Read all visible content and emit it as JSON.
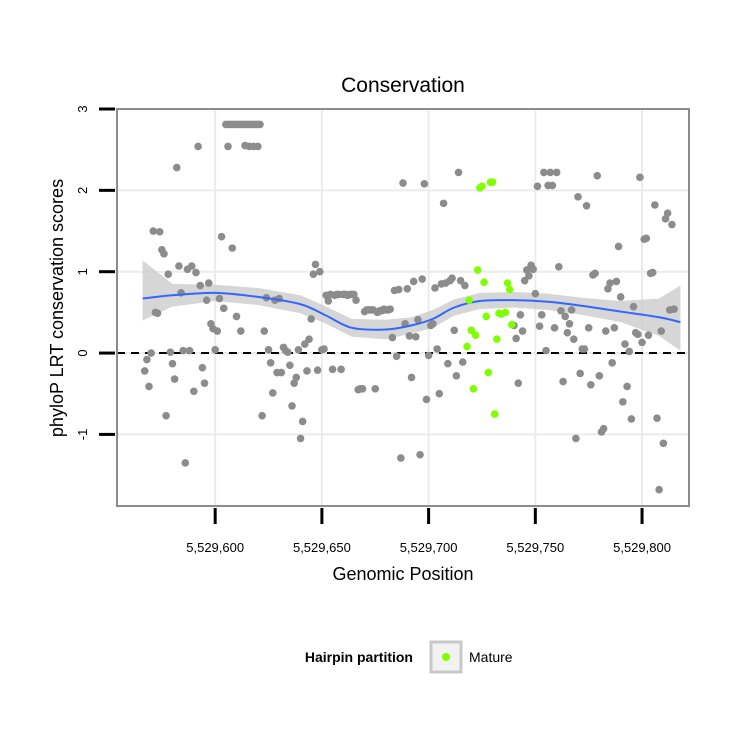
{
  "chart_data": {
    "type": "scatter",
    "title": "Conservation",
    "xlabel": "Genomic Position",
    "ylabel": "phyloP LRT conservation scores",
    "xlim": [
      5529554,
      5529822
    ],
    "ylim": [
      -1.88,
      3.0
    ],
    "x_ticks": [
      5529600,
      5529650,
      5529700,
      5529750,
      5529800
    ],
    "x_tick_labels": [
      "5,529,600",
      "5,529,650",
      "5,529,700",
      "5,529,750",
      "5,529,800"
    ],
    "y_ticks": [
      -1,
      0,
      1,
      2,
      3
    ],
    "y_tick_labels": [
      "-1",
      "0",
      "1",
      "2",
      "3"
    ],
    "reference_line_y": 0,
    "grid": true,
    "legend": {
      "title": "Hairpin partition",
      "placement": "bottom",
      "entries": [
        {
          "label": "Mature",
          "color": "#7fff00"
        }
      ]
    },
    "colors": {
      "points": "#8c8c8c",
      "mature": "#7fff00",
      "smooth_line": "#3366ff",
      "ribbon": "#c8c8c8",
      "panel_border": "#8c8c8c",
      "grid": "#ebebeb"
    },
    "series": [
      {
        "name": "Mature",
        "points": [
          [
            5529719,
            0.65
          ],
          [
            5529720,
            0.28
          ],
          [
            5529721,
            -0.44
          ],
          [
            5529722,
            0.22
          ],
          [
            5529723,
            1.02
          ],
          [
            5529724,
            2.03
          ],
          [
            5529725,
            2.05
          ],
          [
            5529726,
            0.87
          ],
          [
            5529727,
            0.45
          ],
          [
            5529728,
            -0.24
          ],
          [
            5529729,
            2.1
          ],
          [
            5529730,
            2.1
          ],
          [
            5529731,
            -0.75
          ],
          [
            5529732,
            0.17
          ],
          [
            5529733,
            0.49
          ],
          [
            5529734,
            0.48
          ],
          [
            5529736,
            0.5
          ],
          [
            5529737,
            0.86
          ],
          [
            5529738,
            0.78
          ],
          [
            5529739,
            0.35
          ],
          [
            5529718,
            0.08
          ]
        ]
      },
      {
        "name": "",
        "points": [
          [
            5529567,
            -0.22
          ],
          [
            5529568,
            -0.08
          ],
          [
            5529569,
            -0.41
          ],
          [
            5529570,
            0.0
          ],
          [
            5529571,
            1.5
          ],
          [
            5529572,
            0.5
          ],
          [
            5529573,
            0.49
          ],
          [
            5529574,
            1.49
          ],
          [
            5529575,
            1.27
          ],
          [
            5529576,
            1.22
          ],
          [
            5529577,
            -0.77
          ],
          [
            5529578,
            0.97
          ],
          [
            5529579,
            0.01
          ],
          [
            5529580,
            -0.13
          ],
          [
            5529581,
            -0.32
          ],
          [
            5529582,
            2.28
          ],
          [
            5529583,
            1.07
          ],
          [
            5529584,
            0.74
          ],
          [
            5529585,
            0.03
          ],
          [
            5529586,
            -1.35
          ],
          [
            5529587,
            1.03
          ],
          [
            5529588,
            0.03
          ],
          [
            5529589,
            1.07
          ],
          [
            5529590,
            -0.47
          ],
          [
            5529591,
            0.99
          ],
          [
            5529592,
            2.54
          ],
          [
            5529593,
            0.83
          ],
          [
            5529594,
            -0.18
          ],
          [
            5529595,
            -0.37
          ],
          [
            5529596,
            0.65
          ],
          [
            5529597,
            0.86
          ],
          [
            5529598,
            0.36
          ],
          [
            5529599,
            0.3
          ],
          [
            5529600,
            0.04
          ],
          [
            5529601,
            0.27
          ],
          [
            5529602,
            0.67
          ],
          [
            5529603,
            1.43
          ],
          [
            5529604,
            0.55
          ],
          [
            5529605,
            2.81
          ],
          [
            5529606,
            2.81
          ],
          [
            5529607,
            2.81
          ],
          [
            5529608,
            2.81
          ],
          [
            5529609,
            2.81
          ],
          [
            5529610,
            2.81
          ],
          [
            5529611,
            2.81
          ],
          [
            5529612,
            2.81
          ],
          [
            5529613,
            2.81
          ],
          [
            5529614,
            2.81
          ],
          [
            5529615,
            2.81
          ],
          [
            5529616,
            2.81
          ],
          [
            5529617,
            2.81
          ],
          [
            5529618,
            2.81
          ],
          [
            5529619,
            2.81
          ],
          [
            5529620,
            2.81
          ],
          [
            5529621,
            2.81
          ],
          [
            5529606,
            2.54
          ],
          [
            5529608,
            1.29
          ],
          [
            5529610,
            0.45
          ],
          [
            5529612,
            0.27
          ],
          [
            5529614,
            2.55
          ],
          [
            5529616,
            2.54
          ],
          [
            5529618,
            2.54
          ],
          [
            5529620,
            2.54
          ],
          [
            5529622,
            -0.77
          ],
          [
            5529623,
            0.27
          ],
          [
            5529624,
            0.68
          ],
          [
            5529625,
            0.04
          ],
          [
            5529626,
            -0.12
          ],
          [
            5529627,
            -0.49
          ],
          [
            5529628,
            0.65
          ],
          [
            5529629,
            -0.24
          ],
          [
            5529630,
            0.67
          ],
          [
            5529631,
            -0.24
          ],
          [
            5529632,
            0.07
          ],
          [
            5529633,
            0.03
          ],
          [
            5529634,
            0.01
          ],
          [
            5529635,
            -0.15
          ],
          [
            5529636,
            -0.65
          ],
          [
            5529637,
            -0.37
          ],
          [
            5529638,
            -0.3
          ],
          [
            5529639,
            0.04
          ],
          [
            5529640,
            -1.05
          ],
          [
            5529641,
            -0.84
          ],
          [
            5529642,
            0.11
          ],
          [
            5529643,
            -0.22
          ],
          [
            5529644,
            0.17
          ],
          [
            5529645,
            0.42
          ],
          [
            5529646,
            0.97
          ],
          [
            5529647,
            1.09
          ],
          [
            5529648,
            -0.21
          ],
          [
            5529649,
            1.0
          ],
          [
            5529650,
            0.04
          ],
          [
            5529651,
            0.05
          ],
          [
            5529652,
            0.71
          ],
          [
            5529653,
            0.64
          ],
          [
            5529654,
            0.72
          ],
          [
            5529655,
            -0.2
          ],
          [
            5529656,
            0.71
          ],
          [
            5529657,
            0.72
          ],
          [
            5529658,
            0.72
          ],
          [
            5529659,
            -0.2
          ],
          [
            5529660,
            0.72
          ],
          [
            5529661,
            0.72
          ],
          [
            5529662,
            0.71
          ],
          [
            5529663,
            0.72
          ],
          [
            5529664,
            0.72
          ],
          [
            5529665,
            0.72
          ],
          [
            5529666,
            0.65
          ],
          [
            5529667,
            -0.45
          ],
          [
            5529668,
            -0.44
          ],
          [
            5529669,
            -0.44
          ],
          [
            5529670,
            0.51
          ],
          [
            5529671,
            0.53
          ],
          [
            5529672,
            0.53
          ],
          [
            5529673,
            0.53
          ],
          [
            5529674,
            0.53
          ],
          [
            5529675,
            -0.44
          ],
          [
            5529676,
            0.5
          ],
          [
            5529677,
            0.52
          ],
          [
            5529678,
            0.52
          ],
          [
            5529679,
            0.54
          ],
          [
            5529680,
            0.53
          ],
          [
            5529681,
            0.53
          ],
          [
            5529682,
            0.54
          ],
          [
            5529683,
            0.19
          ],
          [
            5529684,
            0.77
          ],
          [
            5529685,
            -0.04
          ],
          [
            5529686,
            0.78
          ],
          [
            5529687,
            -1.29
          ],
          [
            5529688,
            2.09
          ],
          [
            5529689,
            0.36
          ],
          [
            5529690,
            0.79
          ],
          [
            5529691,
            0.21
          ],
          [
            5529692,
            -0.3
          ],
          [
            5529693,
            0.88
          ],
          [
            5529694,
            0.2
          ],
          [
            5529695,
            0.41
          ],
          [
            5529696,
            -1.25
          ],
          [
            5529697,
            0.91
          ],
          [
            5529698,
            2.08
          ],
          [
            5529699,
            -0.57
          ],
          [
            5529700,
            -0.03
          ],
          [
            5529701,
            0.34
          ],
          [
            5529702,
            0.36
          ],
          [
            5529703,
            0.8
          ],
          [
            5529704,
            0.05
          ],
          [
            5529705,
            -0.5
          ],
          [
            5529706,
            0.85
          ],
          [
            5529707,
            1.84
          ],
          [
            5529708,
            0.86
          ],
          [
            5529709,
            -0.13
          ],
          [
            5529710,
            0.89
          ],
          [
            5529711,
            0.92
          ],
          [
            5529712,
            0.28
          ],
          [
            5529713,
            -0.28
          ],
          [
            5529714,
            2.22
          ],
          [
            5529715,
            0.89
          ],
          [
            5529716,
            -0.11
          ],
          [
            5529717,
            0.83
          ],
          [
            5529740,
            0.34
          ],
          [
            5529741,
            0.18
          ],
          [
            5529742,
            -0.37
          ],
          [
            5529743,
            0.47
          ],
          [
            5529744,
            0.27
          ],
          [
            5529745,
            0.89
          ],
          [
            5529746,
            1.02
          ],
          [
            5529747,
            0.95
          ],
          [
            5529748,
            1.08
          ],
          [
            5529749,
            1.03
          ],
          [
            5529750,
            0.73
          ],
          [
            5529751,
            2.05
          ],
          [
            5529752,
            0.33
          ],
          [
            5529753,
            0.47
          ],
          [
            5529754,
            2.22
          ],
          [
            5529755,
            0.03
          ],
          [
            5529756,
            2.06
          ],
          [
            5529757,
            2.22
          ],
          [
            5529758,
            2.06
          ],
          [
            5529759,
            0.31
          ],
          [
            5529760,
            2.22
          ],
          [
            5529761,
            1.06
          ],
          [
            5529762,
            0.52
          ],
          [
            5529763,
            -0.35
          ],
          [
            5529764,
            0.45
          ],
          [
            5529765,
            0.25
          ],
          [
            5529766,
            0.36
          ],
          [
            5529767,
            0.53
          ],
          [
            5529768,
            0.17
          ],
          [
            5529769,
            -1.05
          ],
          [
            5529770,
            1.92
          ],
          [
            5529771,
            -0.25
          ],
          [
            5529772,
            0.05
          ],
          [
            5529773,
            0.05
          ],
          [
            5529774,
            1.81
          ],
          [
            5529775,
            0.31
          ],
          [
            5529776,
            -0.39
          ],
          [
            5529777,
            0.96
          ],
          [
            5529778,
            0.98
          ],
          [
            5529779,
            2.18
          ],
          [
            5529780,
            -0.28
          ],
          [
            5529781,
            -0.97
          ],
          [
            5529782,
            -0.93
          ],
          [
            5529783,
            0.27
          ],
          [
            5529784,
            0.79
          ],
          [
            5529785,
            0.86
          ],
          [
            5529786,
            -0.12
          ],
          [
            5529787,
            0.31
          ],
          [
            5529788,
            0.88
          ],
          [
            5529789,
            1.31
          ],
          [
            5529790,
            0.69
          ],
          [
            5529791,
            -0.6
          ],
          [
            5529792,
            0.11
          ],
          [
            5529793,
            -0.41
          ],
          [
            5529794,
            0.02
          ],
          [
            5529795,
            -0.81
          ],
          [
            5529796,
            0.57
          ],
          [
            5529797,
            0.25
          ],
          [
            5529798,
            0.23
          ],
          [
            5529799,
            2.16
          ],
          [
            5529800,
            0.13
          ],
          [
            5529801,
            1.4
          ],
          [
            5529802,
            1.41
          ],
          [
            5529803,
            0.22
          ],
          [
            5529804,
            0.98
          ],
          [
            5529805,
            0.99
          ],
          [
            5529806,
            1.82
          ],
          [
            5529807,
            -0.8
          ],
          [
            5529808,
            -1.68
          ],
          [
            5529809,
            0.27
          ],
          [
            5529810,
            -1.11
          ],
          [
            5529811,
            1.65
          ],
          [
            5529812,
            1.72
          ],
          [
            5529813,
            0.53
          ],
          [
            5529814,
            1.58
          ],
          [
            5529815,
            0.54
          ]
        ]
      }
    ],
    "smooth_fit": {
      "x": [
        5529566,
        5529580,
        5529600,
        5529620,
        5529640,
        5529652,
        5529664,
        5529680,
        5529692,
        5529702,
        5529712,
        5529724,
        5529740,
        5529756,
        5529772,
        5529790,
        5529808,
        5529818
      ],
      "y": [
        0.67,
        0.71,
        0.74,
        0.69,
        0.6,
        0.46,
        0.31,
        0.29,
        0.34,
        0.42,
        0.56,
        0.64,
        0.65,
        0.63,
        0.58,
        0.51,
        0.44,
        0.38
      ],
      "lower": [
        0.4,
        0.57,
        0.64,
        0.59,
        0.49,
        0.36,
        0.2,
        0.17,
        0.24,
        0.31,
        0.46,
        0.54,
        0.56,
        0.53,
        0.47,
        0.38,
        0.21,
        0.03
      ],
      "upper": [
        1.14,
        0.85,
        0.84,
        0.8,
        0.71,
        0.57,
        0.42,
        0.41,
        0.44,
        0.53,
        0.66,
        0.74,
        0.75,
        0.73,
        0.68,
        0.64,
        0.67,
        0.83
      ]
    }
  }
}
